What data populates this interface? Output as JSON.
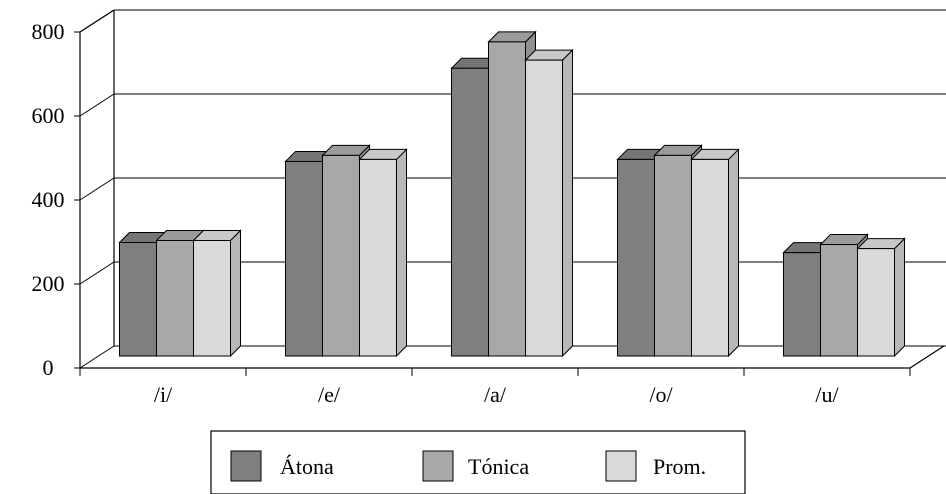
{
  "chart_data": {
    "type": "bar",
    "categories": [
      "/i/",
      "/e/",
      "/a/",
      "/o/",
      "/u/"
    ],
    "series": [
      {
        "name": "Átona",
        "values": [
          280,
          480,
          710,
          485,
          255
        ],
        "color": "#7f7f7f"
      },
      {
        "name": "Tónica",
        "values": [
          285,
          495,
          775,
          495,
          275
        ],
        "color": "#a8a8a8"
      },
      {
        "name": "Prom.",
        "values": [
          285,
          485,
          730,
          485,
          265
        ],
        "color": "#d9d9d9"
      }
    ],
    "y_ticks": [
      "0",
      "200",
      "400",
      "600",
      "800"
    ],
    "ylim": [
      0,
      800
    ],
    "grid": true,
    "legend_position": "bottom",
    "title": "",
    "xlabel": "",
    "ylabel": ""
  }
}
